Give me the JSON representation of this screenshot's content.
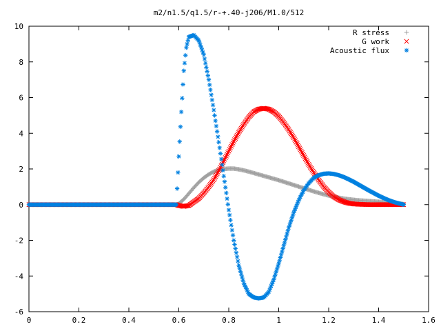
{
  "chart_data": {
    "type": "scatter",
    "title": "m2/n1.5/q1.5/r-+.40-j206/M1.0/512",
    "xlabel": "",
    "ylabel": "",
    "xlim": [
      0,
      1.6
    ],
    "ylim": [
      -6,
      10
    ],
    "xticks": [
      0,
      0.2,
      0.4,
      0.6,
      0.8,
      1,
      1.2,
      1.4,
      1.6
    ],
    "yticks": [
      -6,
      -4,
      -2,
      0,
      2,
      4,
      6,
      8,
      10
    ],
    "xtick_labels": [
      "0",
      "0.2",
      "0.4",
      "0.6",
      "0.8",
      "1",
      "1.2",
      "1.4",
      "1.6"
    ],
    "ytick_labels": [
      "-6",
      "-4",
      "-2",
      "0",
      "2",
      "4",
      "6",
      "8",
      "10"
    ],
    "grid": false,
    "legend_position": "top-right",
    "series": [
      {
        "name": "R stress",
        "marker": "plus",
        "color": "#a0a0a0",
        "x": [
          0.0,
          0.59,
          0.6,
          0.62,
          0.64,
          0.66,
          0.68,
          0.7,
          0.72,
          0.74,
          0.76,
          0.78,
          0.8,
          0.82,
          0.84,
          0.86,
          0.88,
          0.9,
          0.92,
          0.94,
          0.96,
          0.98,
          1.0,
          1.02,
          1.04,
          1.06,
          1.08,
          1.1,
          1.12,
          1.14,
          1.16,
          1.18,
          1.2,
          1.22,
          1.24,
          1.26,
          1.28,
          1.3,
          1.32,
          1.34,
          1.36,
          1.38,
          1.4,
          1.42,
          1.44,
          1.46,
          1.48,
          1.5
        ],
        "y": [
          0.0,
          0.0,
          0.05,
          0.3,
          0.62,
          0.95,
          1.25,
          1.5,
          1.7,
          1.85,
          1.95,
          2.0,
          2.02,
          2.02,
          1.98,
          1.92,
          1.85,
          1.77,
          1.69,
          1.61,
          1.53,
          1.45,
          1.37,
          1.28,
          1.19,
          1.1,
          1.01,
          0.92,
          0.83,
          0.74,
          0.66,
          0.58,
          0.51,
          0.45,
          0.39,
          0.34,
          0.3,
          0.27,
          0.24,
          0.22,
          0.2,
          0.18,
          0.16,
          0.14,
          0.12,
          0.1,
          0.07,
          0.03
        ]
      },
      {
        "name": "G work",
        "marker": "cross",
        "color": "#ff0000",
        "x": [
          0.0,
          0.59,
          0.6,
          0.62,
          0.64,
          0.66,
          0.68,
          0.7,
          0.72,
          0.74,
          0.76,
          0.78,
          0.8,
          0.82,
          0.84,
          0.86,
          0.88,
          0.9,
          0.92,
          0.94,
          0.96,
          0.98,
          1.0,
          1.02,
          1.04,
          1.06,
          1.08,
          1.1,
          1.12,
          1.14,
          1.16,
          1.18,
          1.2,
          1.22,
          1.24,
          1.26,
          1.28,
          1.3,
          1.32,
          1.34,
          1.36,
          1.38,
          1.4,
          1.42,
          1.44,
          1.46,
          1.48,
          1.5
        ],
        "y": [
          0.0,
          0.0,
          -0.05,
          -0.1,
          -0.05,
          0.15,
          0.35,
          0.65,
          1.0,
          1.4,
          1.9,
          2.45,
          3.0,
          3.55,
          4.05,
          4.5,
          4.9,
          5.2,
          5.35,
          5.4,
          5.35,
          5.2,
          4.95,
          4.6,
          4.2,
          3.75,
          3.25,
          2.75,
          2.25,
          1.8,
          1.38,
          1.0,
          0.7,
          0.45,
          0.28,
          0.16,
          0.08,
          0.04,
          0.02,
          0.01,
          0.0,
          0.0,
          0.0,
          0.0,
          0.0,
          0.0,
          0.0,
          0.0
        ]
      },
      {
        "name": "Acoustic flux",
        "marker": "star",
        "color": "#0080e0",
        "x": [
          0.0,
          0.59,
          0.6,
          0.61,
          0.62,
          0.63,
          0.64,
          0.66,
          0.68,
          0.7,
          0.72,
          0.74,
          0.76,
          0.78,
          0.8,
          0.82,
          0.84,
          0.86,
          0.88,
          0.9,
          0.92,
          0.94,
          0.96,
          0.98,
          1.0,
          1.02,
          1.04,
          1.06,
          1.08,
          1.1,
          1.12,
          1.14,
          1.16,
          1.18,
          1.2,
          1.22,
          1.24,
          1.26,
          1.28,
          1.3,
          1.32,
          1.34,
          1.36,
          1.38,
          1.4,
          1.42,
          1.44,
          1.46,
          1.48,
          1.5
        ],
        "y": [
          0.0,
          0.0,
          2.7,
          5.2,
          7.5,
          8.8,
          9.4,
          9.5,
          9.2,
          8.4,
          7.0,
          5.3,
          3.5,
          1.6,
          -0.3,
          -2.0,
          -3.4,
          -4.4,
          -5.0,
          -5.2,
          -5.25,
          -5.2,
          -4.9,
          -4.2,
          -3.3,
          -2.3,
          -1.3,
          -0.45,
          0.25,
          0.8,
          1.2,
          1.5,
          1.65,
          1.73,
          1.75,
          1.72,
          1.65,
          1.55,
          1.42,
          1.28,
          1.12,
          0.96,
          0.8,
          0.65,
          0.5,
          0.37,
          0.25,
          0.15,
          0.07,
          0.0
        ]
      }
    ]
  }
}
